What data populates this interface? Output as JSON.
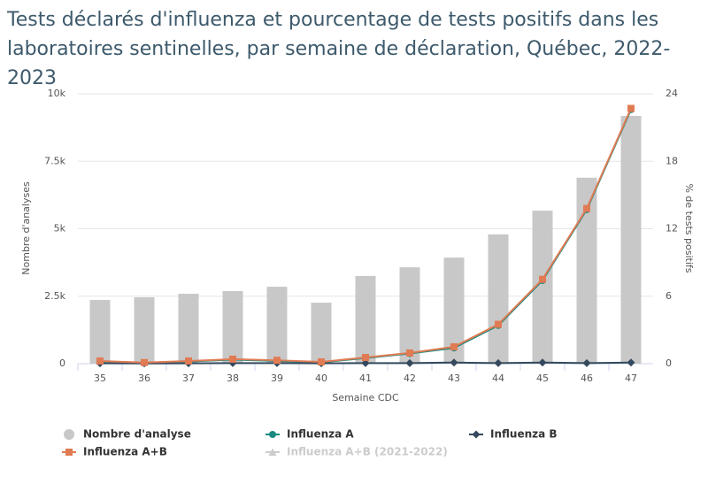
{
  "chart_data": {
    "type": "bar-line",
    "title": "Tests déclarés d'influenza et pourcentage de tests positifs dans les laboratoires sentinelles, par semaine de déclaration, Québec, 2022-2023",
    "xlabel": "Semaine CDC",
    "ylabel": "Nombre d'analyses",
    "y2label": "% de tests positifs",
    "categories": [
      "35",
      "36",
      "37",
      "38",
      "39",
      "40",
      "41",
      "42",
      "43",
      "44",
      "45",
      "46",
      "47"
    ],
    "ylim": [
      0,
      10000
    ],
    "yticks": [
      0,
      {
        "value": 2500,
        "label": "2.5k"
      },
      {
        "value": 5000,
        "label": "5k"
      },
      {
        "value": 7500,
        "label": "7.5k"
      },
      {
        "value": 10000,
        "label": "10k"
      }
    ],
    "y2lim": [
      0,
      24
    ],
    "y2ticks": [
      0,
      6,
      12,
      18,
      24
    ],
    "grid": true,
    "series": [
      {
        "name": "Nombre d'analyse",
        "type": "bar",
        "color": "#c8c8c8",
        "values": [
          2360,
          2460,
          2590,
          2690,
          2850,
          2260,
          3250,
          3570,
          3930,
          4790,
          5670,
          6890,
          9180
        ]
      },
      {
        "name": "Influenza A",
        "type": "line",
        "axis": "y2",
        "marker": "circle",
        "color": "#1a8a80",
        "values": [
          0.2,
          0.08,
          0.2,
          0.35,
          0.25,
          0.12,
          0.5,
          0.9,
          1.4,
          3.4,
          7.4,
          13.7,
          22.6
        ]
      },
      {
        "name": "Influenza B",
        "type": "line",
        "axis": "y2",
        "marker": "diamond",
        "color": "#34495e",
        "values": [
          0.03,
          0.02,
          0.03,
          0.05,
          0.05,
          0.03,
          0.05,
          0.05,
          0.1,
          0.05,
          0.1,
          0.05,
          0.1
        ]
      },
      {
        "name": "Influenza A+B",
        "type": "line",
        "axis": "y2",
        "marker": "square",
        "color": "#e07b53",
        "values": [
          0.24,
          0.1,
          0.24,
          0.4,
          0.3,
          0.16,
          0.55,
          0.95,
          1.5,
          3.5,
          7.5,
          13.8,
          22.7
        ]
      },
      {
        "name": "Influenza A+B (2021-2022)",
        "type": "line",
        "axis": "y2",
        "marker": "triangle",
        "color": "#cccccc",
        "visible": false,
        "values": [
          null,
          null,
          null,
          null,
          null,
          null,
          null,
          null,
          null,
          null,
          null,
          null,
          null
        ]
      }
    ]
  }
}
